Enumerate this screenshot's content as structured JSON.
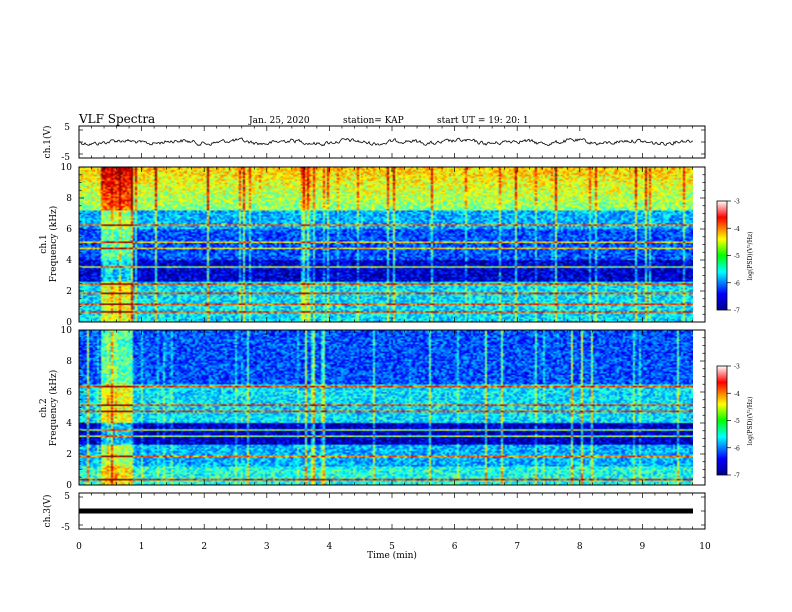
{
  "header": {
    "title": "VLF Spectra",
    "date": "Jan. 25, 2020",
    "station": "station= KAP",
    "start": "start  UT =   19: 20: 1"
  },
  "chart_data": [
    {
      "type": "line",
      "panel": "ch1-waveform",
      "ylabel": "ch.1(V)",
      "ylim": [
        -5,
        5
      ],
      "yticks": [
        "5",
        "-5"
      ],
      "xlim": [
        0,
        10
      ],
      "description_values": {
        "mean": 0,
        "noise_amplitude_approx": 1.5
      }
    },
    {
      "type": "heatmap",
      "panel": "ch1-spectrogram",
      "ylabel_top": "ch.1",
      "ylabel": "Frequency  (kHz)",
      "ylim": [
        0,
        10
      ],
      "yticks": [
        "0",
        "2",
        "4",
        "6",
        "8",
        "10"
      ],
      "xlim": [
        0,
        10
      ],
      "colorbar": {
        "label": "log(PSD)(V²/Hz)",
        "range": [
          -7,
          -3
        ],
        "ticks": [
          "-3",
          "-4",
          "-5",
          "-6",
          "-7"
        ]
      },
      "lines_khz": [
        0.7,
        1.2,
        1.9,
        2.5,
        3.6,
        4.8,
        5.2,
        6.3
      ]
    },
    {
      "type": "heatmap",
      "panel": "ch2-spectrogram",
      "ylabel_top": "ch.2",
      "ylabel": "Frequency  (kHz)",
      "ylim": [
        0,
        10
      ],
      "yticks": [
        "0",
        "2",
        "4",
        "6",
        "8",
        "10"
      ],
      "xlim": [
        0,
        10
      ],
      "colorbar": {
        "label": "log(PSD)(V²/Hz)",
        "range": [
          -7,
          -3
        ],
        "ticks": [
          "-3",
          "-4",
          "-5",
          "-6",
          "-7"
        ]
      },
      "lines_khz": [
        0.4,
        1.9,
        3.2,
        3.6,
        4.8,
        5.2,
        6.4
      ]
    },
    {
      "type": "line",
      "panel": "ch3-waveform",
      "ylabel": "ch.3(V)",
      "ylim": [
        -5,
        5
      ],
      "yticks": [
        "5",
        "-5"
      ],
      "xlim": [
        0,
        10
      ],
      "xticks": [
        "0",
        "1",
        "2",
        "3",
        "4",
        "5",
        "6",
        "7",
        "8",
        "9",
        "10"
      ],
      "xlabel": "Time  (min)",
      "values_constant": 0
    }
  ],
  "colors": {
    "low": "#00008f",
    "high": "#8b0000"
  }
}
